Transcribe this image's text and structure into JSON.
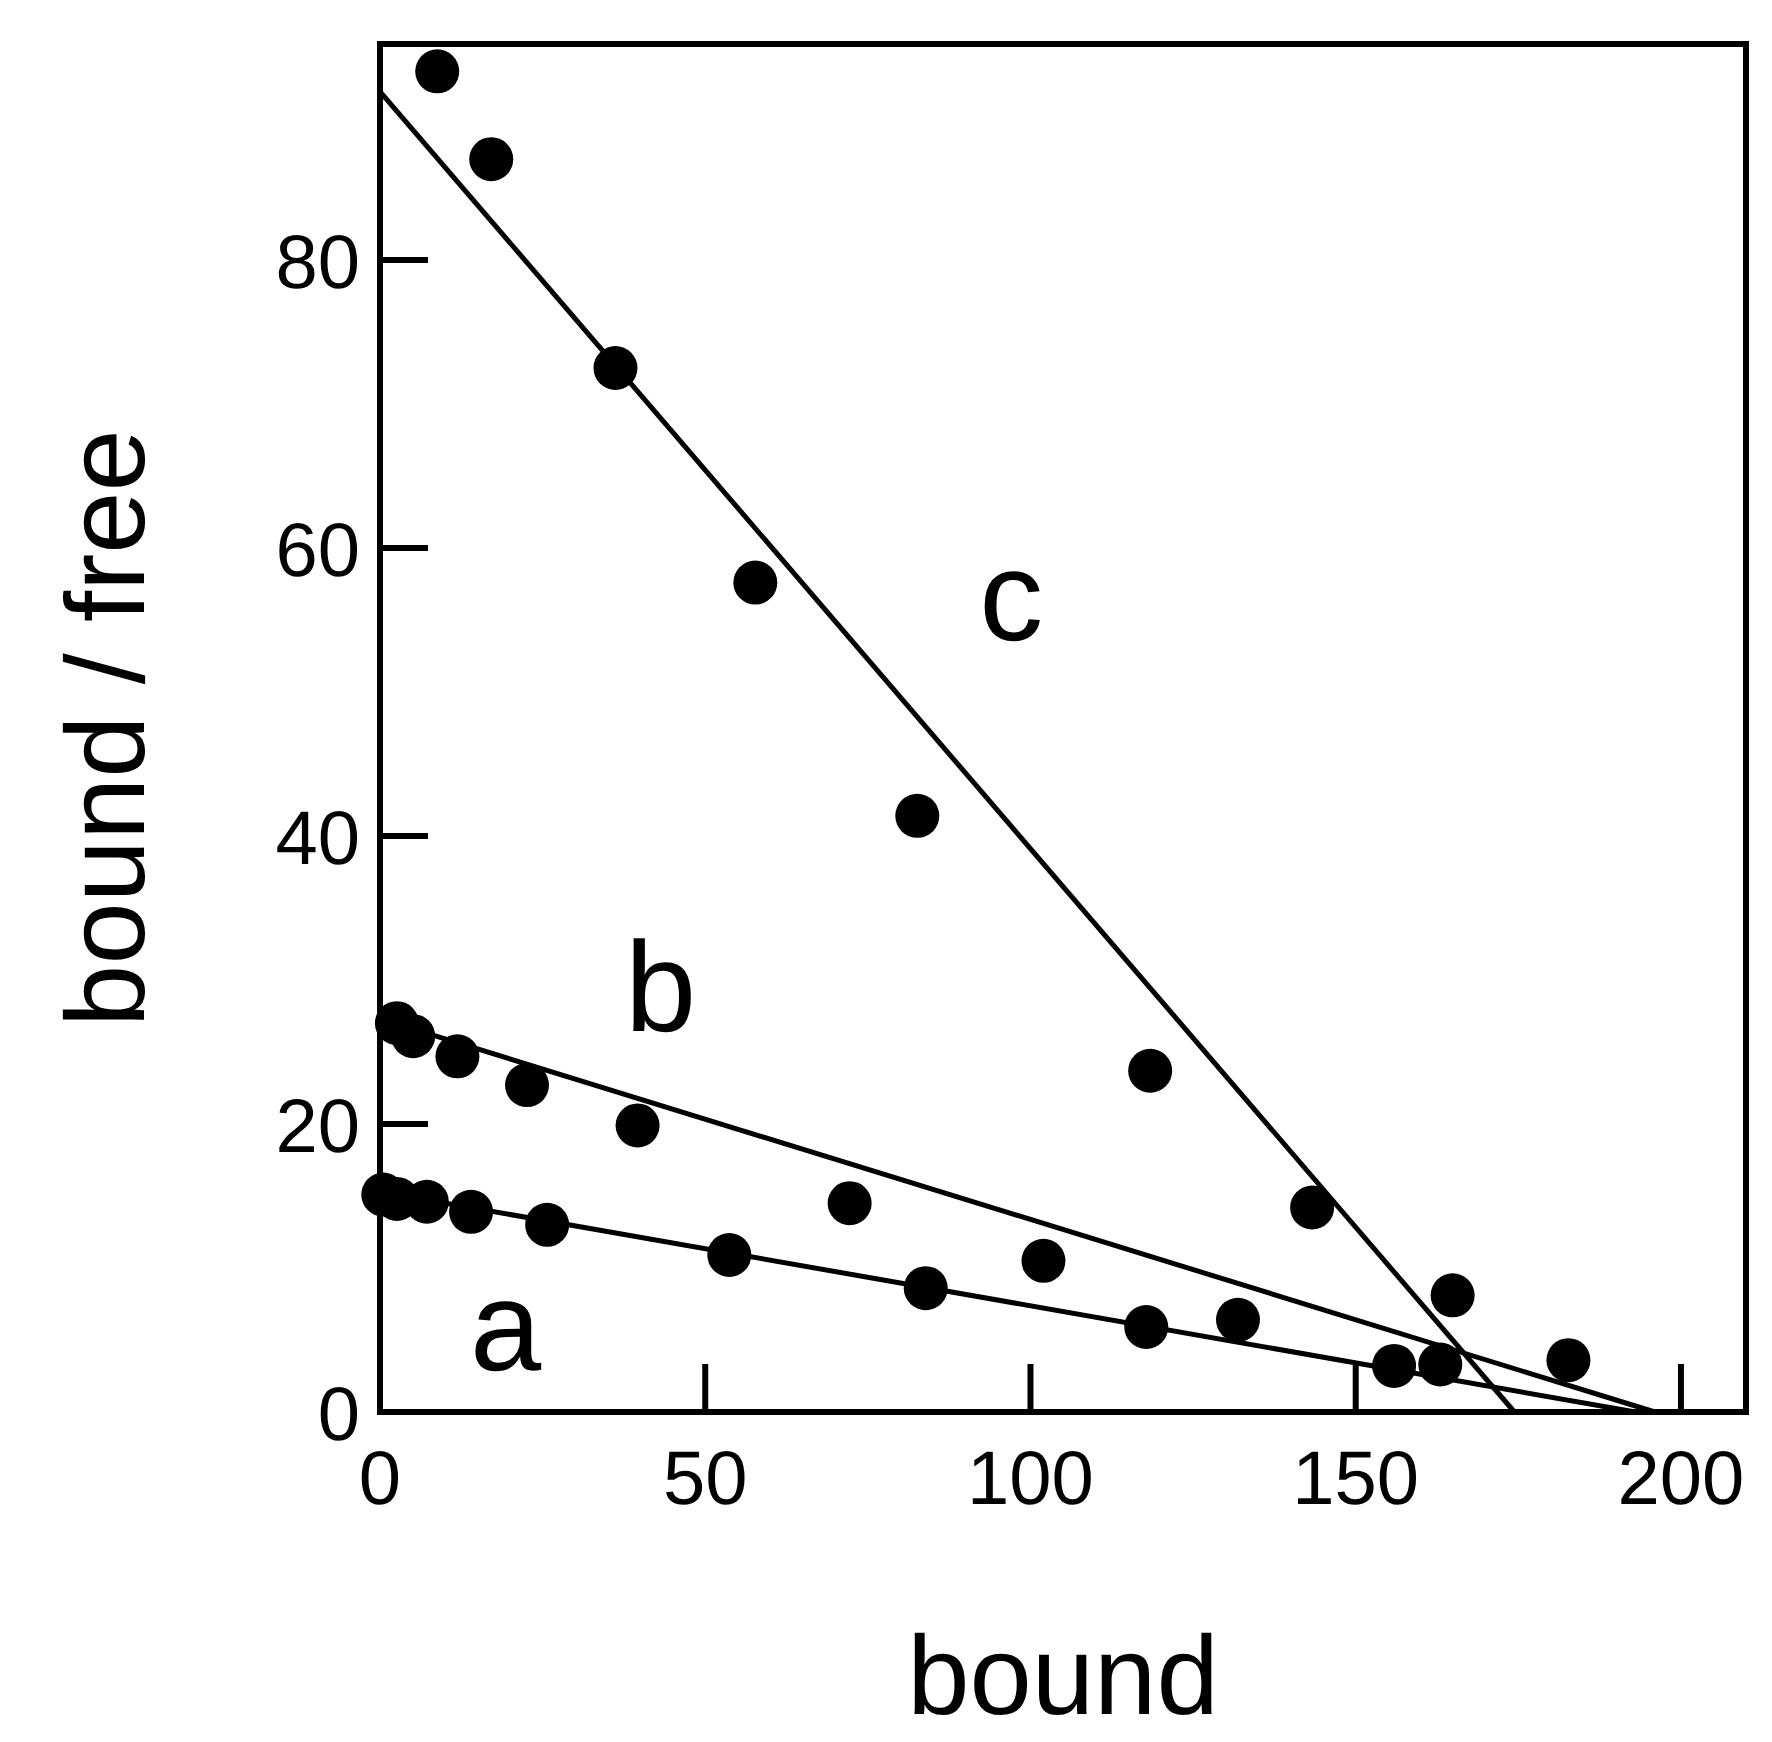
{
  "chart_data": {
    "type": "scatter",
    "xlabel": "bound",
    "ylabel": "bound / free",
    "xlim": [
      0,
      210
    ],
    "ylim": [
      0,
      95
    ],
    "xticks": [
      0,
      50,
      100,
      150,
      200
    ],
    "yticks": [
      0,
      20,
      40,
      60,
      80
    ],
    "grid": false,
    "marker": "circle",
    "series": [
      {
        "color": "#000000",
        "x": [
          8.8,
          17.1,
          36.2,
          57.7,
          82.6,
          118.4,
          143.3,
          164.9
        ],
        "values": [
          93.1,
          87.0,
          72.5,
          57.6,
          41.4,
          23.7,
          14.2,
          8.1
        ]
      },
      {
        "color": "#000000",
        "x": [
          2.6,
          5.1,
          11.9,
          22.6,
          39.6,
          72.2,
          102,
          131.9,
          163,
          182.7
        ],
        "values": [
          27.0,
          26.1,
          24.7,
          22.7,
          19.9,
          14.5,
          10.5,
          6.4,
          3.3,
          3.6
        ]
      },
      {
        "color": "#000000",
        "x": [
          0.5,
          2.6,
          7.2,
          14,
          25.7,
          53.7,
          83.9,
          117.8,
          155.9
        ],
        "values": [
          15.1,
          14.8,
          14.6,
          13.9,
          13.0,
          10.9,
          8.6,
          5.9,
          3.2
        ]
      },
      {
        "type": "line",
        "name": "c",
        "color": "#000000",
        "marker": "none",
        "line_style": "solid",
        "x": [
          0,
          174.4
        ],
        "values": [
          91.7,
          0
        ]
      },
      {
        "type": "line",
        "name": "b",
        "color": "#000000",
        "marker": "none",
        "line_style": "solid",
        "x": [
          0,
          196
        ],
        "values": [
          27.3,
          0
        ]
      },
      {
        "type": "line",
        "name": "a",
        "color": "#000000",
        "marker": "none",
        "line_style": "solid",
        "x": [
          0,
          193
        ],
        "values": [
          15.3,
          0
        ]
      }
    ]
  }
}
